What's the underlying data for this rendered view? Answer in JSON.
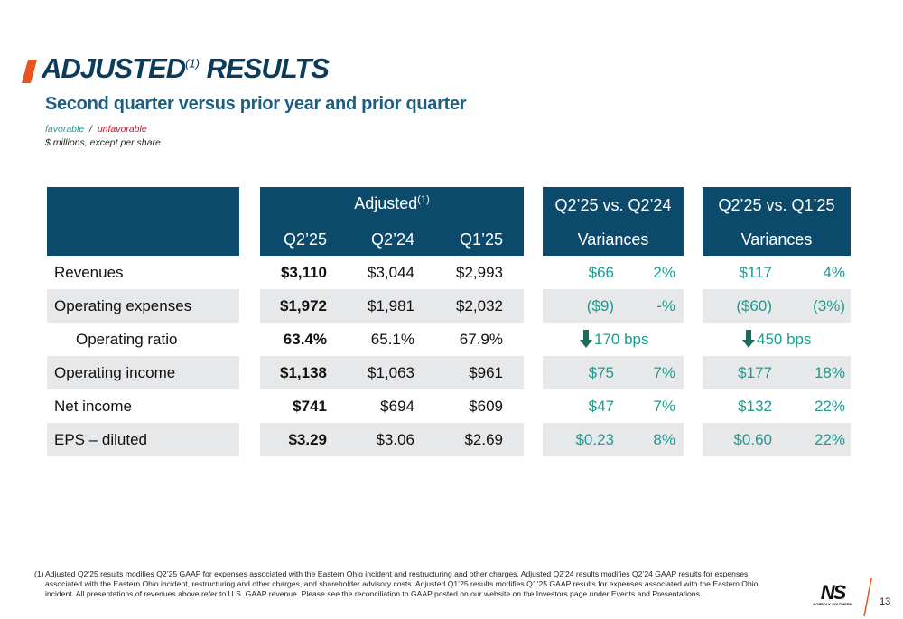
{
  "header": {
    "title": "ADJUSTED",
    "title_sup": "(1)",
    "title_end": "RESULTS",
    "subtitle": "Second quarter versus prior year and prior quarter",
    "legend_favorable": "favorable",
    "legend_separator": "/",
    "legend_unfavorable": "unfavorable",
    "units_note": "$ millions, except per share"
  },
  "table": {
    "adjusted_header": "Adjusted",
    "adjusted_sup": "(1)",
    "columns": [
      "Q2’25",
      "Q2’24",
      "Q1’25"
    ],
    "prior_year_header": "Q2’25 vs. Q2’24",
    "prior_year_subheader": "Variances",
    "prior_quarter_header": "Q2’25 vs. Q1’25",
    "prior_quarter_subheader": "Variances",
    "rows": [
      {
        "label": "Revenues",
        "values": [
          "$3,110",
          "$3,044",
          "$2,993"
        ],
        "vs_prior_year": [
          "$66",
          "2%"
        ],
        "vs_prior_quarter": [
          "$117",
          "4%"
        ]
      },
      {
        "label": "Operating expenses",
        "values": [
          "$1,972",
          "$1,981",
          "$2,032"
        ],
        "vs_prior_year": [
          "($9)",
          "-%"
        ],
        "vs_prior_quarter": [
          "($60)",
          "(3%)"
        ]
      },
      {
        "label": "Operating ratio",
        "values": [
          "63.4%",
          "65.1%",
          "67.9%"
        ],
        "vs_prior_year": [
          "170 bps"
        ],
        "vs_prior_quarter": [
          "450 bps"
        ]
      },
      {
        "label": "Operating income",
        "values": [
          "$1,138",
          "$1,063",
          "$961"
        ],
        "vs_prior_year": [
          "$75",
          "7%"
        ],
        "vs_prior_quarter": [
          "$177",
          "18%"
        ]
      },
      {
        "label": "Net income",
        "values": [
          "$741",
          "$694",
          "$609"
        ],
        "vs_prior_year": [
          "$47",
          "7%"
        ],
        "vs_prior_quarter": [
          "$132",
          "22%"
        ]
      },
      {
        "label": "EPS – diluted",
        "values": [
          "$3.29",
          "$3.06",
          "$2.69"
        ],
        "vs_prior_year": [
          "$0.23",
          "8%"
        ],
        "vs_prior_quarter": [
          "$0.60",
          "22%"
        ]
      }
    ]
  },
  "footnote": {
    "marker": "(1)",
    "text": "Adjusted Q2’25 results modifies Q2’25 GAAP for expenses associated with the Eastern Ohio incident and restructuring and other charges. Adjusted Q2’24 results modifies Q2’24 GAAP results for expenses associated with the Eastern Ohio incident, restructuring and other charges, and shareholder advisory costs. Adjusted Q1’25 results modifies Q1’25 GAAP results for expenses associated with the Eastern Ohio incident. All presentations of revenues above refer to U.S. GAAP revenue.  Please see the reconciliation to GAAP posted on our website on the Investors page under Events and Presentations."
  },
  "logo": {
    "mark": "NS",
    "name": "NORFOLK SOUTHERN"
  },
  "page_number": "13"
}
